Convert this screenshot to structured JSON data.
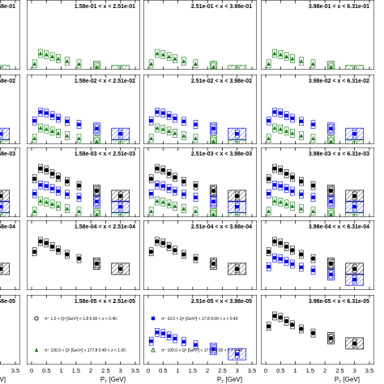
{
  "chart_data": {
    "type": "scatter",
    "xlabel": "P_T [GeV]",
    "xlabel_main": "P",
    "xlabel_sub": "T",
    "xlabel_unit": " [GeV]",
    "x_ticks": [
      "0",
      "0.5",
      "1",
      "1.5",
      "2",
      "2.5",
      "3",
      "3.5"
    ],
    "x_ticks_partial": [
      "3.5",
      "0.5",
      "1",
      "1.5",
      "2",
      "2.5",
      "3",
      "3.5"
    ],
    "xlim": [
      0,
      3.5
    ],
    "grid": "5x4",
    "legend": {
      "placement": "bottom-row",
      "entries": [
        {
          "text": "π⁺ 1.0 < Q² [GeV²] < 1.8 0.00 < z < 0.40",
          "marker": "open-circle",
          "color": "#000000"
        },
        {
          "text": "π⁺ 10.0 < Q² [GeV²] < 17.8 0.00 < z < 0.40",
          "marker": "filled-square",
          "color": "#0000ff"
        },
        {
          "text": "π⁺ 100.0 < Q² [GeV²] < 177.8 0.40 < z < 1.00",
          "marker": "filled-triangle",
          "color": "#117711"
        },
        {
          "text": "π⁺ 100.0 < Q² [GeV²] < 177.8 0.00 < z < 0.40",
          "marker": "open-triangle",
          "color": "#117711"
        }
      ]
    },
    "panels": [
      [
        {
          "label": "58e-01",
          "series": [
            "green"
          ]
        },
        {
          "label": "1.58e-01 < x < 2.51e-01",
          "series": [
            "green"
          ]
        },
        {
          "label": "2.51e-01 < x < 3.98e-01",
          "series": [
            "green"
          ]
        },
        {
          "label": "3.98e-01 < x < 6.31e-01",
          "series": [
            "green"
          ]
        }
      ],
      [
        {
          "label": "58e-02",
          "series": [
            "blue",
            "green"
          ]
        },
        {
          "label": "1.58e-02 < x < 2.51e-02",
          "series": [
            "blue",
            "green"
          ]
        },
        {
          "label": "2.51e-02 < x < 3.98e-02",
          "series": [
            "blue",
            "green"
          ]
        },
        {
          "label": "3.98e-02 < x < 6.31e-02",
          "series": [
            "blue",
            "green"
          ]
        }
      ],
      [
        {
          "label": "58e-03",
          "series": [
            "black",
            "blue",
            "green"
          ]
        },
        {
          "label": "1.58e-03 < x < 2.51e-03",
          "series": [
            "black",
            "blue",
            "green"
          ]
        },
        {
          "label": "2.51e-03 < x < 3.98e-03",
          "series": [
            "black",
            "blue",
            "green"
          ]
        },
        {
          "label": "3.98e-03 < x < 6.31e-03",
          "series": [
            "black",
            "blue",
            "green"
          ]
        }
      ],
      [
        {
          "label": "58e-04",
          "series": [
            "black"
          ]
        },
        {
          "label": "1.58e-04 < x < 2.51e-04",
          "series": [
            "black"
          ]
        },
        {
          "label": "2.51e-04 < x < 3.98e-04",
          "series": [
            "black"
          ]
        },
        {
          "label": "3.98e-04 < x < 6.31e-04",
          "series": [
            "black",
            "blue"
          ]
        }
      ],
      [
        {
          "label": "58e-05",
          "series": []
        },
        {
          "label": "1.58e-05 < x < 2.51e-05",
          "series": []
        },
        {
          "label": "2.51e-05 < x < 3.98e-05",
          "series": [
            "blue"
          ]
        },
        {
          "label": "3.98e-05 < x < 6.31e-05",
          "series": [
            "black"
          ]
        }
      ]
    ],
    "series": [
      {
        "key": "black",
        "color": "#000000",
        "marker": "filled-circle",
        "x": [
          0.1,
          0.3,
          0.5,
          0.7,
          0.9,
          1.2,
          1.6,
          2.2,
          3.0
        ],
        "y": [
          0.55,
          0.75,
          0.72,
          0.65,
          0.58,
          0.5,
          0.42,
          0.32,
          0.22
        ]
      },
      {
        "key": "blue",
        "color": "#0000ff",
        "marker": "filled-square",
        "x": [
          0.1,
          0.3,
          0.5,
          0.7,
          0.9,
          1.2,
          1.6,
          2.2,
          3.0
        ],
        "y": [
          0.45,
          0.62,
          0.6,
          0.55,
          0.5,
          0.44,
          0.38,
          0.3,
          0.2
        ]
      },
      {
        "key": "green",
        "color": "#117711",
        "marker": "filled-triangle",
        "x": [
          0.1,
          0.3,
          0.5,
          0.7,
          0.9,
          1.2,
          1.6,
          2.2,
          3.0
        ],
        "y": [
          0.3,
          0.5,
          0.48,
          0.44,
          0.4,
          0.35,
          0.3,
          0.24,
          0.16
        ]
      }
    ],
    "colors": {
      "black": "#000000",
      "blue": "#0000ff",
      "green": "#117711",
      "band_green": "#2e8b2e",
      "band_blue": "#2233cc"
    }
  }
}
